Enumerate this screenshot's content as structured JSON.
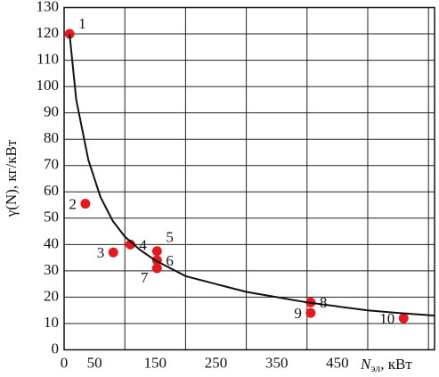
{
  "chart_data": {
    "type": "scatter",
    "y_label": "γ(N), кг/кВт",
    "x_label_symbol": "N",
    "x_label_sub": "эл",
    "x_label_unit": ", кВт",
    "xlim": [
      0,
      610
    ],
    "ylim": [
      0,
      130
    ],
    "xticks": [
      0,
      50,
      150,
      250,
      350,
      450
    ],
    "xgrid": [
      100,
      200,
      300,
      400,
      500,
      600
    ],
    "yticks": [
      0,
      10,
      20,
      30,
      40,
      50,
      60,
      70,
      80,
      90,
      100,
      110,
      120,
      130
    ],
    "grid": true,
    "series": [
      {
        "name": "points",
        "color": "#e8191c",
        "x": [
          9,
          35,
          81,
          109,
          153,
          153,
          153,
          406,
          406,
          559
        ],
        "values": [
          120,
          55.5,
          37,
          40,
          37.5,
          34,
          31,
          18,
          14,
          12
        ],
        "point_labels": [
          "1",
          "2",
          "3",
          "4",
          "5",
          "6",
          "7",
          "8",
          "9",
          "10"
        ]
      },
      {
        "name": "curve",
        "color": "#111111",
        "x": [
          9,
          20,
          40,
          60,
          80,
          100,
          125,
          150,
          200,
          250,
          300,
          350,
          400,
          450,
          500,
          550,
          610
        ],
        "values": [
          120,
          95,
          72,
          58,
          49,
          43,
          38,
          34,
          28,
          25,
          22,
          20,
          18,
          16.5,
          15,
          14,
          13
        ]
      }
    ]
  }
}
